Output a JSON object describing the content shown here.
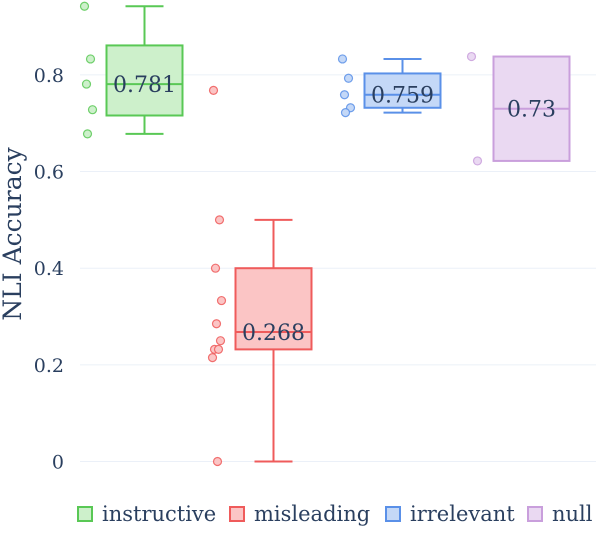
{
  "chart_data": {
    "type": "box",
    "title": "",
    "xlabel": "",
    "ylabel": "NLI Accuracy",
    "ylim": [
      -0.03,
      0.955
    ],
    "yticks": [
      0,
      0.2,
      0.4,
      0.6,
      0.8
    ],
    "grid": true,
    "legend_position": "bottom",
    "series": [
      {
        "name": "instructive",
        "color": "#59c855",
        "fill": "#cdf0cb",
        "min": 0.678,
        "q1": 0.716,
        "median": 0.781,
        "q3": 0.861,
        "max": 0.942,
        "median_label": "0.781",
        "points": [
          0.942,
          0.833,
          0.781,
          0.728,
          0.678
        ]
      },
      {
        "name": "misleading",
        "color": "#ef5b5b",
        "fill": "#fbc5c5",
        "min": 0.0,
        "q1": 0.232,
        "median": 0.268,
        "q3": 0.4,
        "max": 0.5,
        "median_label": "0.268",
        "points": [
          0.768,
          0.5,
          0.4,
          0.333,
          0.285,
          0.25,
          0.232,
          0.232,
          0.215,
          0.0
        ]
      },
      {
        "name": "irrelevant",
        "color": "#5a90e8",
        "fill": "#c4d8f7",
        "min": 0.722,
        "q1": 0.732,
        "median": 0.759,
        "q3": 0.803,
        "max": 0.833,
        "median_label": "0.759",
        "points": [
          0.833,
          0.793,
          0.759,
          0.732,
          0.722
        ]
      },
      {
        "name": "null",
        "color": "#c99fdc",
        "fill": "#ead9f2",
        "min": 0.622,
        "q1": 0.622,
        "median": 0.73,
        "q3": 0.838,
        "max": 0.838,
        "median_label": "0.73",
        "points": [
          0.838,
          0.622
        ]
      }
    ]
  }
}
